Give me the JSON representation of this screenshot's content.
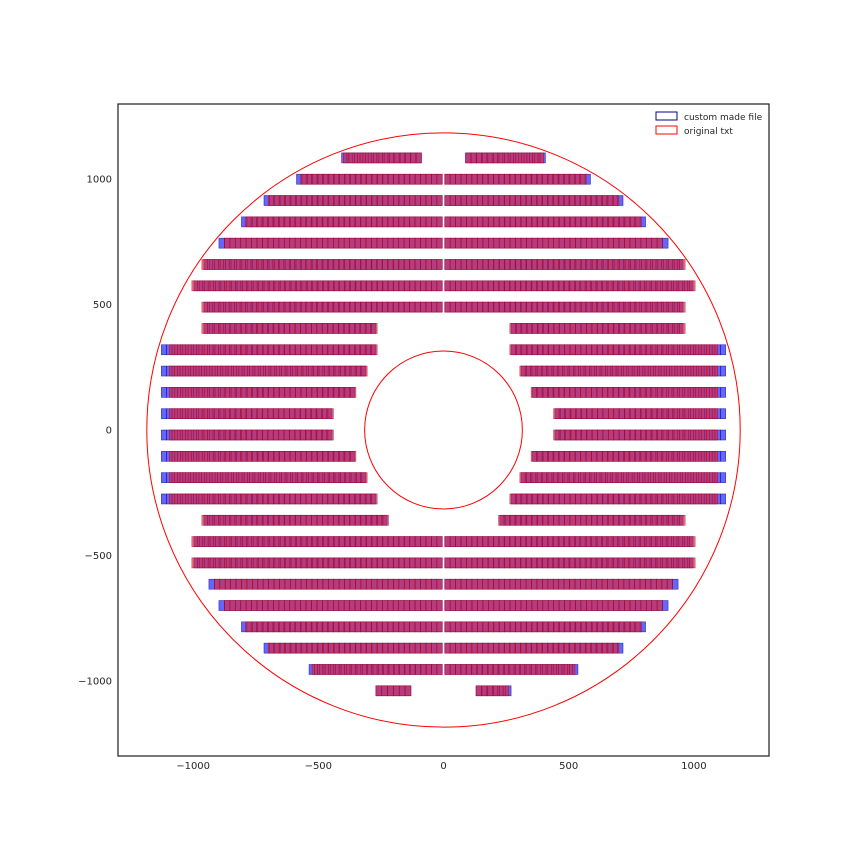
{
  "chart_data": {
    "type": "scatter",
    "title": "",
    "xlabel": "",
    "ylabel": "",
    "xlim": [
      -1300,
      1300
    ],
    "ylim": [
      -1300,
      1300
    ],
    "grid": false,
    "legend_location": "top-right",
    "xticks": [
      -1000,
      -500,
      0,
      500,
      1000
    ],
    "yticks": [
      -1000,
      -500,
      0,
      500,
      1000
    ],
    "xtick_labels": [
      "−1000",
      "−500",
      "0",
      "500",
      "1000"
    ],
    "ytick_labels": [
      "−1000",
      "−500",
      "0",
      "500",
      "1000"
    ],
    "module_size": [
      21.6,
      54
    ],
    "circles": [
      {
        "cx": 0,
        "cy": 0,
        "r": 1185,
        "color": "#ff0000"
      },
      {
        "cx": 0,
        "cy": 0,
        "r": 315,
        "color": "#ff0000"
      }
    ],
    "series": [
      {
        "name": "custom made file",
        "color": "#0000ff",
        "edge_color": "#00008b",
        "rows": [
          {
            "y": 1070,
            "segments": [
              [
                -407,
                -88
              ],
              [
                88,
                407
              ]
            ]
          },
          {
            "y": 985,
            "segments": [
              [
                -587,
                -5
              ],
              [
                5,
                587
              ]
            ]
          },
          {
            "y": 900,
            "segments": [
              [
                -717,
                -5
              ],
              [
                5,
                717
              ]
            ]
          },
          {
            "y": 815,
            "segments": [
              [
                -807,
                -5
              ],
              [
                5,
                807
              ]
            ]
          },
          {
            "y": 730,
            "segments": [
              [
                -897,
                -5
              ],
              [
                5,
                897
              ]
            ]
          },
          {
            "y": 645,
            "segments": [
              [
                -957,
                -5
              ],
              [
                5,
                957
              ]
            ]
          },
          {
            "y": 560,
            "segments": [
              [
                -997,
                -5
              ],
              [
                5,
                997
              ]
            ]
          },
          {
            "y": 475,
            "segments": [
              [
                -957,
                -5
              ],
              [
                5,
                957
              ]
            ]
          },
          {
            "y": 390,
            "segments": [
              [
                -957,
                -270
              ],
              [
                270,
                957
              ]
            ]
          },
          {
            "y": 305,
            "segments": [
              [
                -1127,
                -270
              ],
              [
                270,
                1127
              ]
            ]
          },
          {
            "y": 220,
            "segments": [
              [
                -1127,
                -310
              ],
              [
                310,
                1127
              ]
            ]
          },
          {
            "y": 135,
            "segments": [
              [
                -1127,
                -355
              ],
              [
                355,
                1127
              ]
            ]
          },
          {
            "y": 50,
            "segments": [
              [
                -1127,
                -445
              ],
              [
                445,
                1127
              ]
            ]
          },
          {
            "y": -35,
            "segments": [
              [
                -1127,
                -445
              ],
              [
                445,
                1127
              ]
            ]
          },
          {
            "y": -120,
            "segments": [
              [
                -1127,
                -355
              ],
              [
                355,
                1127
              ]
            ]
          },
          {
            "y": -205,
            "segments": [
              [
                -1127,
                -310
              ],
              [
                310,
                1127
              ]
            ]
          },
          {
            "y": -290,
            "segments": [
              [
                -1127,
                -270
              ],
              [
                270,
                1127
              ]
            ]
          },
          {
            "y": -375,
            "segments": [
              [
                -957,
                -225
              ],
              [
                225,
                957
              ]
            ]
          },
          {
            "y": -460,
            "segments": [
              [
                -997,
                -5
              ],
              [
                5,
                997
              ]
            ]
          },
          {
            "y": -545,
            "segments": [
              [
                -997,
                -5
              ],
              [
                5,
                997
              ]
            ]
          },
          {
            "y": -630,
            "segments": [
              [
                -937,
                -5
              ],
              [
                5,
                937
              ]
            ]
          },
          {
            "y": -715,
            "segments": [
              [
                -897,
                -5
              ],
              [
                5,
                897
              ]
            ]
          },
          {
            "y": -800,
            "segments": [
              [
                -807,
                -5
              ],
              [
                5,
                807
              ]
            ]
          },
          {
            "y": -885,
            "segments": [
              [
                -717,
                -5
              ],
              [
                5,
                717
              ]
            ]
          },
          {
            "y": -970,
            "segments": [
              [
                -537,
                -5
              ],
              [
                5,
                537
              ]
            ]
          },
          {
            "y": -1055,
            "segments": [
              [
                -270,
                -130
              ],
              [
                130,
                270
              ]
            ]
          }
        ]
      },
      {
        "name": "original txt",
        "color": "#e8202a",
        "edge_color": "#b00018",
        "rows": [
          {
            "y": 1070,
            "segments": [
              [
                -400,
                -88
              ],
              [
                88,
                400
              ]
            ]
          },
          {
            "y": 985,
            "segments": [
              [
                -570,
                -5
              ],
              [
                5,
                570
              ]
            ]
          },
          {
            "y": 900,
            "segments": [
              [
                -700,
                -5
              ],
              [
                5,
                700
              ]
            ]
          },
          {
            "y": 815,
            "segments": [
              [
                -790,
                -5
              ],
              [
                5,
                790
              ]
            ]
          },
          {
            "y": 730,
            "segments": [
              [
                -875,
                -5
              ],
              [
                5,
                875
              ]
            ]
          },
          {
            "y": 645,
            "segments": [
              [
                -965,
                -5
              ],
              [
                5,
                965
              ]
            ]
          },
          {
            "y": 560,
            "segments": [
              [
                -1005,
                -5
              ],
              [
                5,
                1005
              ]
            ]
          },
          {
            "y": 475,
            "segments": [
              [
                -965,
                -5
              ],
              [
                5,
                965
              ]
            ]
          },
          {
            "y": 390,
            "segments": [
              [
                -965,
                -265
              ],
              [
                265,
                965
              ]
            ]
          },
          {
            "y": 305,
            "segments": [
              [
                -1095,
                -265
              ],
              [
                265,
                1095
              ]
            ]
          },
          {
            "y": 220,
            "segments": [
              [
                -1095,
                -305
              ],
              [
                305,
                1095
              ]
            ]
          },
          {
            "y": 135,
            "segments": [
              [
                -1095,
                -350
              ],
              [
                350,
                1095
              ]
            ]
          },
          {
            "y": 50,
            "segments": [
              [
                -1095,
                -440
              ],
              [
                440,
                1095
              ]
            ]
          },
          {
            "y": -35,
            "segments": [
              [
                -1095,
                -440
              ],
              [
                440,
                1095
              ]
            ]
          },
          {
            "y": -120,
            "segments": [
              [
                -1095,
                -350
              ],
              [
                350,
                1095
              ]
            ]
          },
          {
            "y": -205,
            "segments": [
              [
                -1095,
                -305
              ],
              [
                305,
                1095
              ]
            ]
          },
          {
            "y": -290,
            "segments": [
              [
                -1095,
                -265
              ],
              [
                265,
                1095
              ]
            ]
          },
          {
            "y": -375,
            "segments": [
              [
                -965,
                -220
              ],
              [
                220,
                965
              ]
            ]
          },
          {
            "y": -460,
            "segments": [
              [
                -1005,
                -5
              ],
              [
                5,
                1005
              ]
            ]
          },
          {
            "y": -545,
            "segments": [
              [
                -1005,
                -5
              ],
              [
                5,
                1005
              ]
            ]
          },
          {
            "y": -630,
            "segments": [
              [
                -915,
                -5
              ],
              [
                5,
                915
              ]
            ]
          },
          {
            "y": -715,
            "segments": [
              [
                -875,
                -5
              ],
              [
                5,
                875
              ]
            ]
          },
          {
            "y": -800,
            "segments": [
              [
                -790,
                -5
              ],
              [
                5,
                790
              ]
            ]
          },
          {
            "y": -885,
            "segments": [
              [
                -700,
                -5
              ],
              [
                5,
                700
              ]
            ]
          },
          {
            "y": -970,
            "segments": [
              [
                -525,
                -5
              ],
              [
                5,
                525
              ]
            ]
          },
          {
            "y": -1055,
            "segments": [
              [
                -270,
                -130
              ],
              [
                130,
                260
              ]
            ]
          }
        ]
      }
    ]
  }
}
